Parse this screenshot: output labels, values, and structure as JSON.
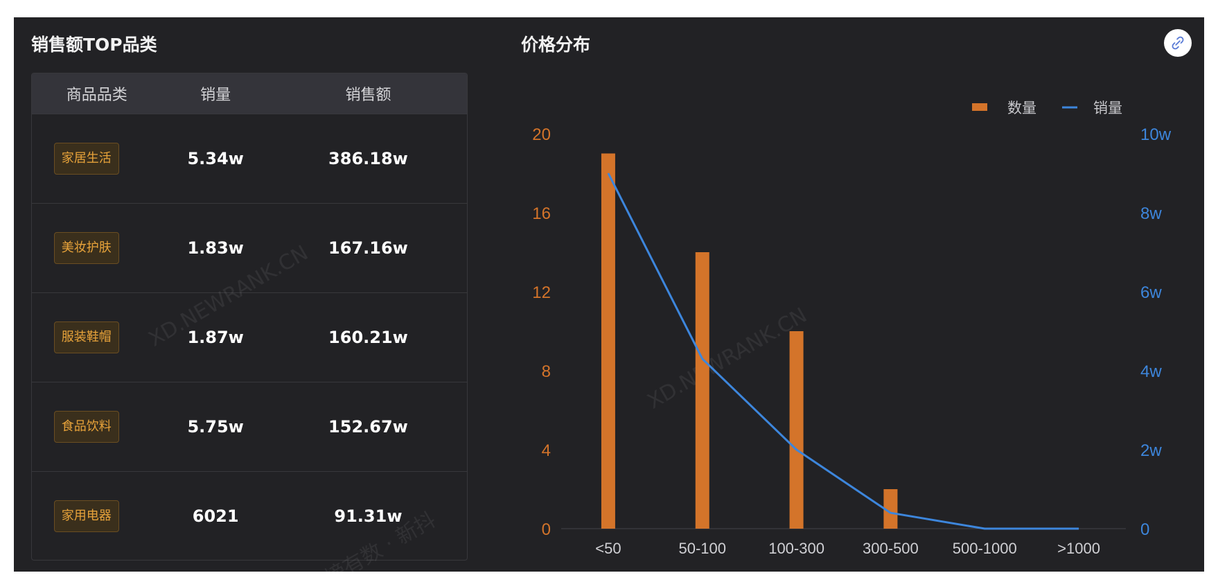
{
  "left_panel": {
    "title": "销售额TOP品类",
    "columns": [
      "商品品类",
      "销量",
      "销售额"
    ],
    "rows": [
      {
        "category": "家居生活",
        "volume": "5.34w",
        "sales": "386.18w"
      },
      {
        "category": "美妆护肤",
        "volume": "1.83w",
        "sales": "167.16w"
      },
      {
        "category": "服装鞋帽",
        "volume": "1.87w",
        "sales": "160.21w"
      },
      {
        "category": "食品饮料",
        "volume": "5.75w",
        "sales": "152.67w"
      },
      {
        "category": "家用电器",
        "volume": "6021",
        "sales": "91.31w"
      }
    ]
  },
  "right_panel": {
    "title": "价格分布"
  },
  "watermarks": [
    "XD.NEWRANK.CN",
    "XD.NEWRANK.CN",
    "新榜有数 · 新抖"
  ],
  "colors": {
    "bar": "#d4742a",
    "line": "#3d86dc",
    "background": "#222225",
    "tag_text": "#e8a33a"
  },
  "share_icon": "link-icon",
  "chart_data": {
    "type": "bar",
    "categories": [
      "<50",
      "50-100",
      "100-300",
      "300-500",
      "500-1000",
      ">1000"
    ],
    "series": [
      {
        "name": "数量",
        "type": "bar",
        "axis": "left",
        "values": [
          19,
          14,
          10,
          2,
          0,
          0
        ]
      },
      {
        "name": "销量",
        "type": "line",
        "axis": "right",
        "values": [
          9.0,
          4.3,
          2.0,
          0.4,
          0,
          0
        ]
      }
    ],
    "y_left": {
      "ticks": [
        "0",
        "4",
        "8",
        "12",
        "16",
        "20"
      ],
      "ylim": [
        0,
        20
      ]
    },
    "y_right": {
      "ticks": [
        "0",
        "2w",
        "4w",
        "6w",
        "8w",
        "10w"
      ],
      "ylim": [
        0,
        10
      ]
    },
    "legend": {
      "placement": "top-right",
      "items": [
        "数量",
        "销量"
      ]
    },
    "grid": false
  }
}
